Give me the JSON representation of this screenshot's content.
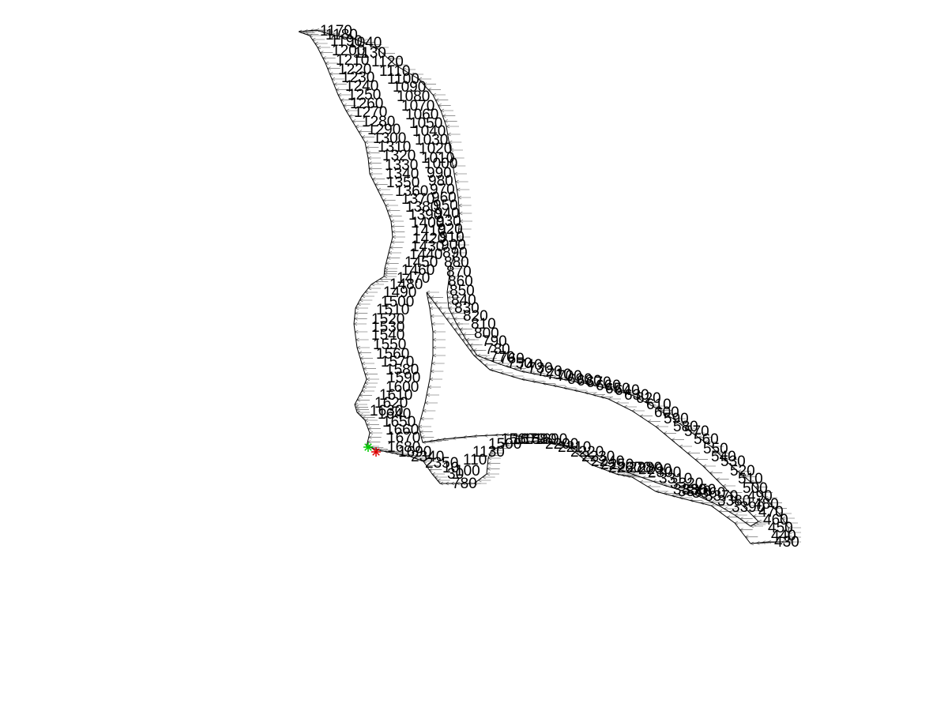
{
  "chart_data": {
    "type": "scatter",
    "title": "",
    "xlabel": "",
    "ylabel": "",
    "grid": false,
    "axes_visible": false,
    "xlim": [
      0,
      1200
    ],
    "ylim": [
      0,
      900
    ],
    "colors": {
      "line": "#000000",
      "vector": "#555555",
      "start_marker": "#00cc00",
      "end_marker": "#dd0000"
    },
    "outer_boundary": [
      [
        378,
        40
      ],
      [
        392,
        45
      ],
      [
        402,
        60
      ],
      [
        412,
        80
      ],
      [
        420,
        100
      ],
      [
        428,
        120
      ],
      [
        438,
        140
      ],
      [
        450,
        160
      ],
      [
        462,
        180
      ],
      [
        466,
        200
      ],
      [
        468,
        220
      ],
      [
        478,
        240
      ],
      [
        488,
        260
      ],
      [
        495,
        280
      ],
      [
        497,
        300
      ],
      [
        492,
        320
      ],
      [
        487,
        340
      ],
      [
        486,
        350
      ],
      [
        470,
        360
      ],
      [
        458,
        375
      ],
      [
        450,
        390
      ],
      [
        448,
        410
      ],
      [
        452,
        440
      ],
      [
        458,
        460
      ],
      [
        464,
        480
      ],
      [
        458,
        495
      ],
      [
        449,
        512
      ],
      [
        452,
        522
      ],
      [
        462,
        532
      ],
      [
        468,
        548
      ],
      [
        464,
        565
      ],
      [
        480,
        570
      ],
      [
        500,
        574
      ],
      [
        520,
        578
      ],
      [
        536,
        584
      ],
      [
        547,
        600
      ],
      [
        557,
        612
      ],
      [
        578,
        612
      ],
      [
        600,
        612
      ],
      [
        616,
        600
      ],
      [
        618,
        580
      ],
      [
        622,
        570
      ],
      [
        640,
        562
      ],
      [
        680,
        558
      ],
      [
        720,
        566
      ],
      [
        748,
        588
      ],
      [
        780,
        600
      ],
      [
        800,
        604
      ],
      [
        830,
        622
      ],
      [
        860,
        630
      ],
      [
        900,
        640
      ],
      [
        930,
        662
      ],
      [
        950,
        688
      ],
      [
        972,
        686
      ],
      [
        998,
        686
      ],
      [
        998,
        668
      ],
      [
        986,
        650
      ],
      [
        968,
        630
      ],
      [
        950,
        610
      ],
      [
        926,
        590
      ],
      [
        900,
        565
      ],
      [
        876,
        548
      ],
      [
        852,
        530
      ],
      [
        826,
        514
      ],
      [
        800,
        500
      ],
      [
        770,
        492
      ],
      [
        740,
        485
      ],
      [
        700,
        478
      ],
      [
        660,
        470
      ],
      [
        630,
        460
      ],
      [
        604,
        450
      ],
      [
        590,
        430
      ],
      [
        578,
        410
      ],
      [
        568,
        390
      ],
      [
        566,
        370
      ],
      [
        570,
        340
      ],
      [
        578,
        310
      ],
      [
        582,
        280
      ],
      [
        580,
        250
      ],
      [
        575,
        220
      ],
      [
        570,
        190
      ],
      [
        565,
        160
      ],
      [
        558,
        140
      ],
      [
        548,
        120
      ],
      [
        530,
        100
      ],
      [
        500,
        82
      ],
      [
        476,
        60
      ],
      [
        450,
        50
      ],
      [
        420,
        44
      ],
      [
        400,
        38
      ],
      [
        378,
        40
      ]
    ],
    "inner_boundary": [
      [
        540,
        370
      ],
      [
        544,
        390
      ],
      [
        548,
        420
      ],
      [
        548,
        450
      ],
      [
        544,
        480
      ],
      [
        538,
        510
      ],
      [
        530,
        540
      ],
      [
        535,
        560
      ],
      [
        560,
        556
      ],
      [
        600,
        552
      ],
      [
        640,
        550
      ],
      [
        680,
        555
      ],
      [
        720,
        565
      ],
      [
        760,
        586
      ],
      [
        800,
        600
      ],
      [
        840,
        614
      ],
      [
        880,
        626
      ],
      [
        910,
        640
      ],
      [
        930,
        652
      ],
      [
        950,
        666
      ],
      [
        960,
        660
      ],
      [
        940,
        640
      ],
      [
        915,
        615
      ],
      [
        890,
        590
      ],
      [
        860,
        565
      ],
      [
        830,
        540
      ],
      [
        800,
        520
      ],
      [
        770,
        505
      ],
      [
        740,
        497
      ],
      [
        700,
        488
      ],
      [
        660,
        480
      ],
      [
        620,
        468
      ],
      [
        600,
        450
      ],
      [
        585,
        430
      ],
      [
        570,
        410
      ],
      [
        555,
        390
      ],
      [
        540,
        370
      ]
    ],
    "node_labels": [
      {
        "text": "1170",
        "x": 405,
        "y": 45
      },
      {
        "text": "1180",
        "x": 412,
        "y": 50
      },
      {
        "text": "1190",
        "x": 418,
        "y": 58
      },
      {
        "text": "1040",
        "x": 441,
        "y": 60
      },
      {
        "text": "1200",
        "x": 420,
        "y": 70
      },
      {
        "text": "1130",
        "x": 448,
        "y": 73
      },
      {
        "text": "1210",
        "x": 425,
        "y": 82
      },
      {
        "text": "1120",
        "x": 470,
        "y": 84
      },
      {
        "text": "1220",
        "x": 428,
        "y": 94
      },
      {
        "text": "1110",
        "x": 480,
        "y": 96
      },
      {
        "text": "1230",
        "x": 432,
        "y": 104
      },
      {
        "text": "1100",
        "x": 490,
        "y": 106
      },
      {
        "text": "1240",
        "x": 437,
        "y": 115
      },
      {
        "text": "1090",
        "x": 497,
        "y": 116
      },
      {
        "text": "1250",
        "x": 440,
        "y": 126
      },
      {
        "text": "1080",
        "x": 502,
        "y": 128
      },
      {
        "text": "1260",
        "x": 443,
        "y": 137
      },
      {
        "text": "1070",
        "x": 508,
        "y": 140
      },
      {
        "text": "1270",
        "x": 448,
        "y": 148
      },
      {
        "text": "1060",
        "x": 513,
        "y": 151
      },
      {
        "text": "1280",
        "x": 458,
        "y": 160
      },
      {
        "text": "1050",
        "x": 518,
        "y": 162
      },
      {
        "text": "1290",
        "x": 465,
        "y": 170
      },
      {
        "text": "1040",
        "x": 522,
        "y": 172
      },
      {
        "text": "1300",
        "x": 472,
        "y": 181
      },
      {
        "text": "1030",
        "x": 525,
        "y": 183
      },
      {
        "text": "1310",
        "x": 478,
        "y": 192
      },
      {
        "text": "1020",
        "x": 530,
        "y": 194
      },
      {
        "text": "1320",
        "x": 484,
        "y": 203
      },
      {
        "text": "1010",
        "x": 533,
        "y": 206
      },
      {
        "text": "1330",
        "x": 487,
        "y": 215
      },
      {
        "text": "1000",
        "x": 537,
        "y": 213
      },
      {
        "text": "1340",
        "x": 488,
        "y": 226
      },
      {
        "text": "990",
        "x": 540,
        "y": 225
      },
      {
        "text": "1350",
        "x": 489,
        "y": 237
      },
      {
        "text": "980",
        "x": 542,
        "y": 235
      },
      {
        "text": "1360",
        "x": 500,
        "y": 248
      },
      {
        "text": "970",
        "x": 544,
        "y": 246
      },
      {
        "text": "1370",
        "x": 508,
        "y": 258
      },
      {
        "text": "960",
        "x": 546,
        "y": 256
      },
      {
        "text": "1380",
        "x": 513,
        "y": 268
      },
      {
        "text": "950",
        "x": 548,
        "y": 266
      },
      {
        "text": "1390",
        "x": 517,
        "y": 278
      },
      {
        "text": "940",
        "x": 550,
        "y": 276
      },
      {
        "text": "1400",
        "x": 520,
        "y": 288
      },
      {
        "text": "930",
        "x": 552,
        "y": 286
      },
      {
        "text": "1410",
        "x": 522,
        "y": 298
      },
      {
        "text": "920",
        "x": 554,
        "y": 296
      },
      {
        "text": "1420",
        "x": 522,
        "y": 308
      },
      {
        "text": "910",
        "x": 556,
        "y": 306
      },
      {
        "text": "1430",
        "x": 520,
        "y": 318
      },
      {
        "text": "900",
        "x": 558,
        "y": 316
      },
      {
        "text": "1440",
        "x": 518,
        "y": 328
      },
      {
        "text": "890",
        "x": 560,
        "y": 326
      },
      {
        "text": "1450",
        "x": 512,
        "y": 338
      },
      {
        "text": "880",
        "x": 562,
        "y": 338
      },
      {
        "text": "1460",
        "x": 508,
        "y": 348
      },
      {
        "text": "870",
        "x": 565,
        "y": 350
      },
      {
        "text": "1470",
        "x": 502,
        "y": 358
      },
      {
        "text": "860",
        "x": 567,
        "y": 362
      },
      {
        "text": "1480",
        "x": 493,
        "y": 366
      },
      {
        "text": "850",
        "x": 569,
        "y": 374
      },
      {
        "text": "1490",
        "x": 485,
        "y": 376
      },
      {
        "text": "840",
        "x": 571,
        "y": 386
      },
      {
        "text": "1500",
        "x": 482,
        "y": 388
      },
      {
        "text": "830",
        "x": 575,
        "y": 396
      },
      {
        "text": "1510",
        "x": 476,
        "y": 398
      },
      {
        "text": "820",
        "x": 586,
        "y": 406
      },
      {
        "text": "1520",
        "x": 470,
        "y": 410
      },
      {
        "text": "810",
        "x": 596,
        "y": 416
      },
      {
        "text": "1530",
        "x": 470,
        "y": 420
      },
      {
        "text": "800",
        "x": 600,
        "y": 428
      },
      {
        "text": "1540",
        "x": 470,
        "y": 430
      },
      {
        "text": "790",
        "x": 610,
        "y": 438
      },
      {
        "text": "1550",
        "x": 472,
        "y": 442
      },
      {
        "text": "780",
        "x": 614,
        "y": 448
      },
      {
        "text": "1560",
        "x": 476,
        "y": 454
      },
      {
        "text": "770",
        "x": 620,
        "y": 458
      },
      {
        "text": "1570",
        "x": 482,
        "y": 464
      },
      {
        "text": "760",
        "x": 632,
        "y": 460
      },
      {
        "text": "1580",
        "x": 488,
        "y": 474
      },
      {
        "text": "750",
        "x": 642,
        "y": 466
      },
      {
        "text": "1590",
        "x": 490,
        "y": 484
      },
      {
        "text": "740",
        "x": 655,
        "y": 468
      },
      {
        "text": "1600",
        "x": 488,
        "y": 496
      },
      {
        "text": "730",
        "x": 668,
        "y": 472
      },
      {
        "text": "1610",
        "x": 480,
        "y": 506
      },
      {
        "text": "720",
        "x": 680,
        "y": 476
      },
      {
        "text": "1620",
        "x": 474,
        "y": 516
      },
      {
        "text": "710",
        "x": 692,
        "y": 480
      },
      {
        "text": "1630",
        "x": 468,
        "y": 526
      },
      {
        "text": "700",
        "x": 705,
        "y": 482
      },
      {
        "text": "1640",
        "x": 478,
        "y": 530
      },
      {
        "text": "690",
        "x": 718,
        "y": 486
      },
      {
        "text": "1650",
        "x": 484,
        "y": 540
      },
      {
        "text": "680",
        "x": 730,
        "y": 488
      },
      {
        "text": "1660",
        "x": 488,
        "y": 550
      },
      {
        "text": "670",
        "x": 742,
        "y": 490
      },
      {
        "text": "1670",
        "x": 490,
        "y": 560
      },
      {
        "text": "660",
        "x": 754,
        "y": 494
      },
      {
        "text": "1680",
        "x": 490,
        "y": 572
      },
      {
        "text": "650",
        "x": 766,
        "y": 498
      },
      {
        "text": "1690",
        "x": 504,
        "y": 578
      },
      {
        "text": "640",
        "x": 778,
        "y": 500
      },
      {
        "text": "2340",
        "x": 520,
        "y": 584
      },
      {
        "text": "630",
        "x": 790,
        "y": 506
      },
      {
        "text": "2350",
        "x": 538,
        "y": 592
      },
      {
        "text": "620",
        "x": 805,
        "y": 510
      },
      {
        "text": "10",
        "x": 560,
        "y": 598
      },
      {
        "text": "610",
        "x": 818,
        "y": 518
      },
      {
        "text": "30",
        "x": 566,
        "y": 606
      },
      {
        "text": "600",
        "x": 828,
        "y": 528
      },
      {
        "text": "100",
        "x": 576,
        "y": 602
      },
      {
        "text": "590",
        "x": 840,
        "y": 536
      },
      {
        "text": "110",
        "x": 586,
        "y": 588
      },
      {
        "text": "580",
        "x": 852,
        "y": 546
      },
      {
        "text": "780",
        "x": 572,
        "y": 618
      },
      {
        "text": "570",
        "x": 866,
        "y": 552
      },
      {
        "text": "1130",
        "x": 598,
        "y": 578
      },
      {
        "text": "560",
        "x": 878,
        "y": 562
      },
      {
        "text": "1500",
        "x": 618,
        "y": 568
      },
      {
        "text": "550",
        "x": 890,
        "y": 574
      },
      {
        "text": "1560",
        "x": 634,
        "y": 562
      },
      {
        "text": "540",
        "x": 900,
        "y": 584
      },
      {
        "text": "1670",
        "x": 648,
        "y": 562
      },
      {
        "text": "530",
        "x": 912,
        "y": 590
      },
      {
        "text": "1680",
        "x": 662,
        "y": 562
      },
      {
        "text": "520",
        "x": 924,
        "y": 602
      },
      {
        "text": "1690",
        "x": 676,
        "y": 562
      },
      {
        "text": "510",
        "x": 934,
        "y": 612
      },
      {
        "text": "2200",
        "x": 690,
        "y": 568
      },
      {
        "text": "500",
        "x": 940,
        "y": 624
      },
      {
        "text": "2210",
        "x": 706,
        "y": 572
      },
      {
        "text": "490",
        "x": 946,
        "y": 634
      },
      {
        "text": "2220",
        "x": 722,
        "y": 578
      },
      {
        "text": "480",
        "x": 954,
        "y": 644
      },
      {
        "text": "2230",
        "x": 736,
        "y": 584
      },
      {
        "text": "470",
        "x": 960,
        "y": 654
      },
      {
        "text": "2240",
        "x": 748,
        "y": 590
      },
      {
        "text": "460",
        "x": 966,
        "y": 664
      },
      {
        "text": "2250",
        "x": 760,
        "y": 594
      },
      {
        "text": "450",
        "x": 972,
        "y": 674
      },
      {
        "text": "2260",
        "x": 770,
        "y": 598
      },
      {
        "text": "440",
        "x": 976,
        "y": 684
      },
      {
        "text": "2270",
        "x": 782,
        "y": 598
      },
      {
        "text": "430",
        "x": 980,
        "y": 692
      },
      {
        "text": "2280",
        "x": 796,
        "y": 598
      },
      {
        "text": "3390",
        "x": 926,
        "y": 648
      },
      {
        "text": "2290",
        "x": 808,
        "y": 600
      },
      {
        "text": "3380",
        "x": 908,
        "y": 640
      },
      {
        "text": "2300",
        "x": 820,
        "y": 604
      },
      {
        "text": "3370",
        "x": 892,
        "y": 634
      },
      {
        "text": "3310",
        "x": 834,
        "y": 612
      },
      {
        "text": "3360",
        "x": 876,
        "y": 630
      },
      {
        "text": "3320",
        "x": 848,
        "y": 618
      },
      {
        "text": "3350",
        "x": 864,
        "y": 626
      },
      {
        "text": "3330",
        "x": 852,
        "y": 626
      },
      {
        "text": "3340",
        "x": 858,
        "y": 628
      }
    ],
    "markers": [
      {
        "name": "start",
        "symbol": "*",
        "x": 466,
        "y": 566
      },
      {
        "name": "end",
        "symbol": "*",
        "x": 476,
        "y": 572
      }
    ]
  }
}
